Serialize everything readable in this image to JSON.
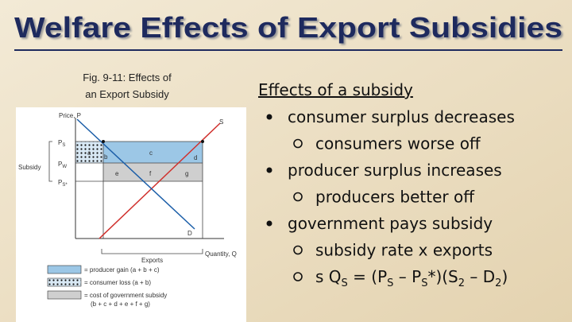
{
  "title": "Welfare Effects of Export Subsidies",
  "figure": {
    "caption": [
      "Fig. 9-11: Effects of",
      "an Export Subsidy"
    ],
    "labels": {
      "price_axis": "Price, P",
      "quantity_axis": "Quantity, Q",
      "supply": "S",
      "demand": "D",
      "subsidy": "Subsidy",
      "exports": "Exports",
      "p_s": [
        "P",
        "S"
      ],
      "p_w": [
        "P",
        "W"
      ],
      "p_s_star": [
        "P",
        "S*"
      ],
      "areas": [
        "a",
        "b",
        "c",
        "d",
        "e",
        "f",
        "g"
      ]
    },
    "legend": [
      "= producer gain (a + b + c)",
      "= consumer loss (a + b)",
      "= cost of government subsidy",
      "(b + c + d + e + f + g)"
    ]
  },
  "heading": "Effects of a subsidy",
  "bullets": [
    {
      "text": "consumer surplus decreases",
      "sub": [
        [
          "consumers worse off"
        ]
      ]
    },
    {
      "text": "producer surplus increases",
      "sub": [
        [
          "producers better off"
        ]
      ]
    },
    {
      "text": "government pays subsidy",
      "sub": [
        [
          "subsidy rate x exports"
        ],
        [
          "s Q",
          "S",
          " = (P",
          "S",
          " – P",
          "S",
          "*)(S",
          "2",
          " – D",
          "2",
          ")"
        ]
      ]
    }
  ]
}
